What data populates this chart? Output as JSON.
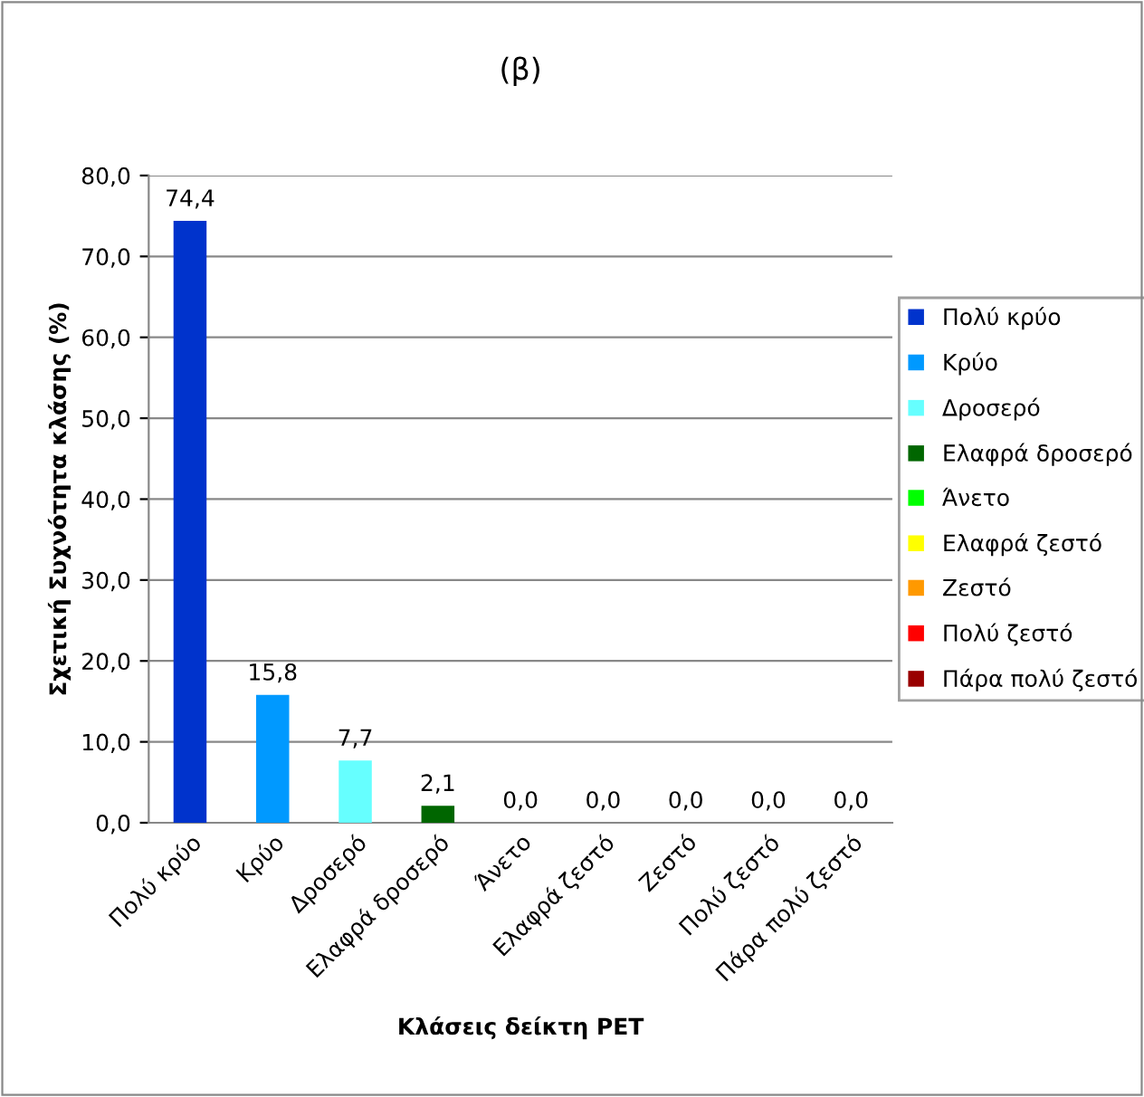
{
  "chart_data": {
    "type": "bar",
    "title": "(β)",
    "xlabel": "Κλάσεις δείκτη PET",
    "ylabel": "Σχετική Συχνότητα κλάσης (%)",
    "categories": [
      "Πολύ κρύο",
      "Κρύο",
      "Δροσερό",
      "Ελαφρά δροσερό",
      "Άνετο",
      "Ελαφρά ζεστό",
      "Ζεστό",
      "Πολύ ζεστό",
      "Πάρα πολύ ζεστό"
    ],
    "series": [
      {
        "name": "Πολύ κρύο",
        "color": "#0033cc",
        "values": [
          74.4,
          null,
          null,
          null,
          null,
          null,
          null,
          null,
          null
        ],
        "value_labels": [
          "74,4",
          null,
          null,
          null,
          null,
          null,
          null,
          null,
          null
        ]
      },
      {
        "name": "Κρύο",
        "color": "#0099ff",
        "values": [
          null,
          15.8,
          null,
          null,
          null,
          null,
          null,
          null,
          null
        ],
        "value_labels": [
          null,
          "15,8",
          null,
          null,
          null,
          null,
          null,
          null,
          null
        ]
      },
      {
        "name": "Δροσερό",
        "color": "#66ffff",
        "values": [
          null,
          null,
          7.7,
          null,
          null,
          null,
          null,
          null,
          null
        ],
        "value_labels": [
          null,
          null,
          "7,7",
          null,
          null,
          null,
          null,
          null,
          null
        ]
      },
      {
        "name": "Ελαφρά δροσερό",
        "color": "#006600",
        "values": [
          null,
          null,
          null,
          2.1,
          null,
          null,
          null,
          null,
          null
        ],
        "value_labels": [
          null,
          null,
          null,
          "2,1",
          null,
          null,
          null,
          null,
          null
        ]
      },
      {
        "name": "Άνετο",
        "color": "#00ff00",
        "values": [
          null,
          null,
          null,
          null,
          0,
          null,
          null,
          null,
          null
        ],
        "value_labels": [
          null,
          null,
          null,
          null,
          "0,0",
          null,
          null,
          null,
          null
        ]
      },
      {
        "name": "Ελαφρά ζεστό",
        "color": "#ffff00",
        "values": [
          null,
          null,
          null,
          null,
          null,
          0,
          null,
          null,
          null
        ],
        "value_labels": [
          null,
          null,
          null,
          null,
          null,
          "0,0",
          null,
          null,
          null
        ]
      },
      {
        "name": "Ζεστό",
        "color": "#ff9900",
        "values": [
          null,
          null,
          null,
          null,
          null,
          null,
          0,
          null,
          null
        ],
        "value_labels": [
          null,
          null,
          null,
          null,
          null,
          null,
          "0,0",
          null,
          null
        ]
      },
      {
        "name": "Πολύ ζεστό",
        "color": "#ff0000",
        "values": [
          null,
          null,
          null,
          null,
          null,
          null,
          null,
          0,
          null
        ],
        "value_labels": [
          null,
          null,
          null,
          null,
          null,
          null,
          null,
          "0,0",
          null
        ]
      },
      {
        "name": "Πάρα πολύ ζεστό",
        "color": "#990000",
        "values": [
          null,
          null,
          null,
          null,
          null,
          null,
          null,
          null,
          0
        ],
        "value_labels": [
          null,
          null,
          null,
          null,
          null,
          null,
          null,
          null,
          "0,0"
        ]
      }
    ],
    "ylim": [
      0,
      80
    ],
    "yticks": [
      {
        "value": 0,
        "label": "0,0"
      },
      {
        "value": 10,
        "label": "10,0"
      },
      {
        "value": 20,
        "label": "20,0"
      },
      {
        "value": 30,
        "label": "30,0"
      },
      {
        "value": 40,
        "label": "40,0"
      },
      {
        "value": 50,
        "label": "50,0"
      },
      {
        "value": 60,
        "label": "60,0"
      },
      {
        "value": 70,
        "label": "70,0"
      },
      {
        "value": 80,
        "label": "80,0"
      }
    ],
    "grid": "y",
    "legend": "right"
  }
}
